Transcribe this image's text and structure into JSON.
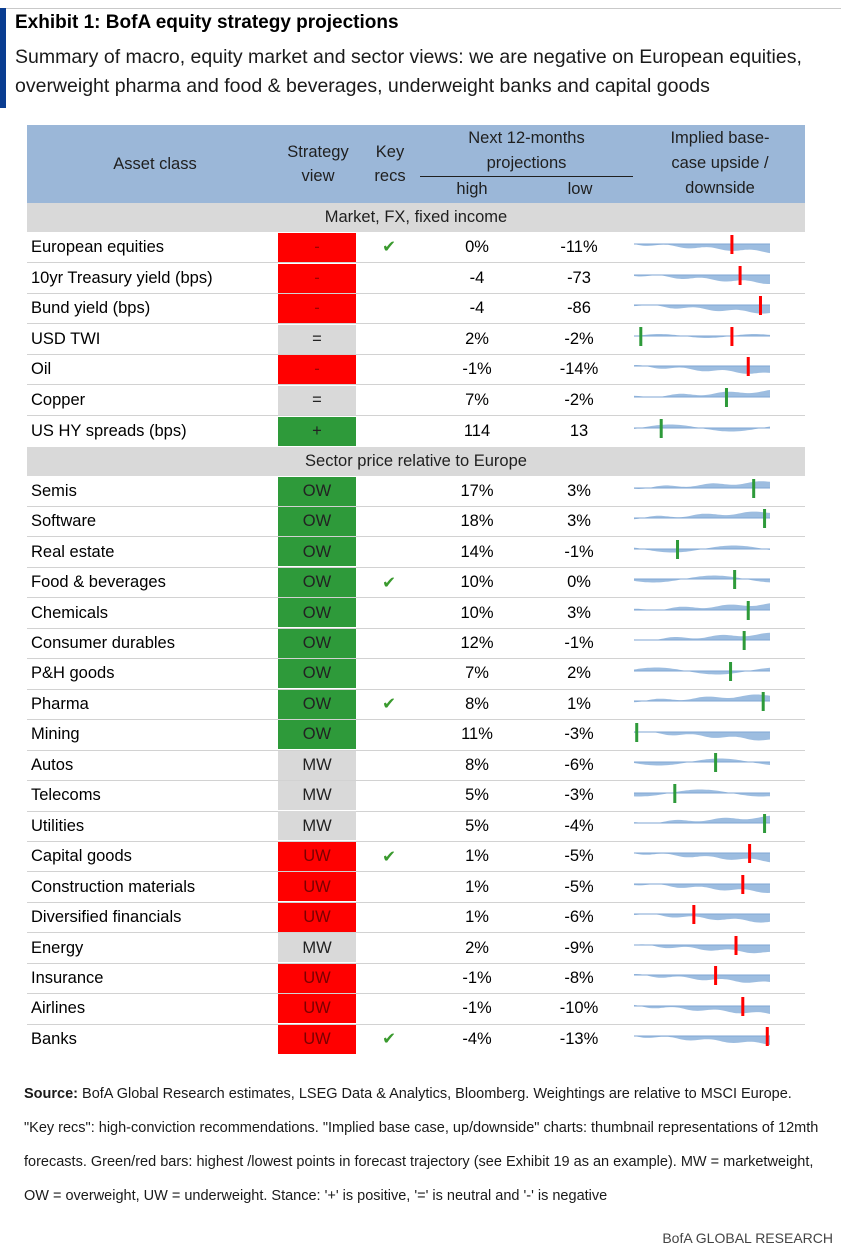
{
  "exhibit": {
    "title": "Exhibit 1: BofA equity strategy projections",
    "subtitle": "Summary of macro, equity market and sector views: we are negative on European equities, overweight pharma and food & beverages, underweight banks and capital goods"
  },
  "header": {
    "asset_class": "Asset class",
    "strategy_view_1": "Strategy",
    "strategy_view_2": "view",
    "key_recs_1": "Key",
    "key_recs_2": "recs",
    "next12_1": "Next 12-months",
    "next12_2": "projections",
    "high": "high",
    "low": "low",
    "implied_1": "Implied base-",
    "implied_2": "case upside /",
    "implied_3": "downside"
  },
  "sections": {
    "macro": "Market, FX, fixed income",
    "sector": "Sector price relative to Europe"
  },
  "colors": {
    "red": "#ff0000",
    "green": "#2e9a3a",
    "grey": "#d9d9d9",
    "header_blue": "#9bb7d8",
    "spark_blue": "#9dbde0"
  },
  "rows": [
    {
      "name": "European equities",
      "view": "-",
      "view_color": "red",
      "key": "✔",
      "high": "0%",
      "low": "-11%",
      "spark": {
        "shape": "down",
        "marker": "red",
        "pos": 0.72
      }
    },
    {
      "name": "10yr Treasury yield (bps)",
      "view": "-",
      "view_color": "red",
      "key": "",
      "high": "-4",
      "low": "-73",
      "spark": {
        "shape": "down",
        "marker": "red",
        "pos": 0.78
      }
    },
    {
      "name": "Bund yield (bps)",
      "view": "-",
      "view_color": "red",
      "key": "",
      "high": "-4",
      "low": "-86",
      "spark": {
        "shape": "down",
        "marker": "red",
        "pos": 0.93
      }
    },
    {
      "name": "USD TWI",
      "view": "=",
      "view_color": "grey",
      "key": "",
      "high": "2%",
      "low": "-2%",
      "spark": {
        "shape": "flat",
        "marker": "both",
        "pos": 0.72
      }
    },
    {
      "name": "Oil",
      "view": "-",
      "view_color": "red",
      "key": "",
      "high": "-1%",
      "low": "-14%",
      "spark": {
        "shape": "down",
        "marker": "red",
        "pos": 0.84
      }
    },
    {
      "name": "Copper",
      "view": "=",
      "view_color": "grey",
      "key": "",
      "high": "7%",
      "low": "-2%",
      "spark": {
        "shape": "up",
        "marker": "green",
        "pos": 0.68
      }
    },
    {
      "name": "US HY spreads (bps)",
      "view": "+",
      "view_color": "green",
      "key": "",
      "high": "114",
      "low": "13",
      "spark": {
        "shape": "wave",
        "marker": "green",
        "pos": 0.2
      }
    },
    {
      "name": "Semis",
      "view": "OW",
      "view_color": "green",
      "key": "",
      "high": "17%",
      "low": "3%",
      "spark": {
        "shape": "up",
        "marker": "green",
        "pos": 0.88
      }
    },
    {
      "name": "Software",
      "view": "OW",
      "view_color": "green",
      "key": "",
      "high": "18%",
      "low": "3%",
      "spark": {
        "shape": "up",
        "marker": "green",
        "pos": 0.96
      }
    },
    {
      "name": "Real estate",
      "view": "OW",
      "view_color": "green",
      "key": "",
      "high": "14%",
      "low": "-1%",
      "spark": {
        "shape": "wave",
        "marker": "green",
        "pos": 0.32
      }
    },
    {
      "name": "Food & beverages",
      "view": "OW",
      "view_color": "green",
      "key": "✔",
      "high": "10%",
      "low": "0%",
      "spark": {
        "shape": "wave",
        "marker": "green",
        "pos": 0.74
      }
    },
    {
      "name": "Chemicals",
      "view": "OW",
      "view_color": "green",
      "key": "",
      "high": "10%",
      "low": "3%",
      "spark": {
        "shape": "up",
        "marker": "green",
        "pos": 0.84
      }
    },
    {
      "name": "Consumer durables",
      "view": "OW",
      "view_color": "green",
      "key": "",
      "high": "12%",
      "low": "-1%",
      "spark": {
        "shape": "up",
        "marker": "green",
        "pos": 0.81
      }
    },
    {
      "name": "P&H goods",
      "view": "OW",
      "view_color": "green",
      "key": "",
      "high": "7%",
      "low": "2%",
      "spark": {
        "shape": "wave",
        "marker": "green",
        "pos": 0.71
      }
    },
    {
      "name": "Pharma",
      "view": "OW",
      "view_color": "green",
      "key": "✔",
      "high": "8%",
      "low": "1%",
      "spark": {
        "shape": "up",
        "marker": "green",
        "pos": 0.95
      }
    },
    {
      "name": "Mining",
      "view": "OW",
      "view_color": "green",
      "key": "",
      "high": "11%",
      "low": "-3%",
      "spark": {
        "shape": "down",
        "marker": "green",
        "pos": 0.02
      }
    },
    {
      "name": "Autos",
      "view": "MW",
      "view_color": "grey",
      "key": "",
      "high": "8%",
      "low": "-6%",
      "spark": {
        "shape": "wave",
        "marker": "green",
        "pos": 0.6
      }
    },
    {
      "name": "Telecoms",
      "view": "MW",
      "view_color": "grey",
      "key": "",
      "high": "5%",
      "low": "-3%",
      "spark": {
        "shape": "wave",
        "marker": "green",
        "pos": 0.3
      }
    },
    {
      "name": "Utilities",
      "view": "MW",
      "view_color": "grey",
      "key": "",
      "high": "5%",
      "low": "-4%",
      "spark": {
        "shape": "up",
        "marker": "green",
        "pos": 0.96
      }
    },
    {
      "name": "Capital goods",
      "view": "UW",
      "view_color": "red",
      "key": "✔",
      "high": "1%",
      "low": "-5%",
      "spark": {
        "shape": "down",
        "marker": "red",
        "pos": 0.85
      }
    },
    {
      "name": "Construction materials",
      "view": "UW",
      "view_color": "red",
      "key": "",
      "high": "1%",
      "low": "-5%",
      "spark": {
        "shape": "down",
        "marker": "red",
        "pos": 0.8
      }
    },
    {
      "name": "Diversified financials",
      "view": "UW",
      "view_color": "red",
      "key": "",
      "high": "1%",
      "low": "-6%",
      "spark": {
        "shape": "down",
        "marker": "red",
        "pos": 0.44
      }
    },
    {
      "name": "Energy",
      "view": "MW",
      "view_color": "grey",
      "key": "",
      "high": "2%",
      "low": "-9%",
      "spark": {
        "shape": "down",
        "marker": "red",
        "pos": 0.75
      }
    },
    {
      "name": "Insurance",
      "view": "UW",
      "view_color": "red",
      "key": "",
      "high": "-1%",
      "low": "-8%",
      "spark": {
        "shape": "down",
        "marker": "red",
        "pos": 0.6
      }
    },
    {
      "name": "Airlines",
      "view": "UW",
      "view_color": "red",
      "key": "",
      "high": "-1%",
      "low": "-10%",
      "spark": {
        "shape": "down",
        "marker": "red",
        "pos": 0.8
      }
    },
    {
      "name": "Banks",
      "view": "UW",
      "view_color": "red",
      "key": "✔",
      "high": "-4%",
      "low": "-13%",
      "spark": {
        "shape": "down",
        "marker": "red",
        "pos": 0.98
      }
    }
  ],
  "source": {
    "label": "Source:",
    "text": " BofA Global Research estimates, LSEG Data & Analytics, Bloomberg. Weightings are relative to MSCI Europe. \"Key recs\": high-conviction recommendations. \"Implied base case, up/downside\" charts: thumbnail representations of 12mth forecasts. Green/red bars: highest /lowest points in forecast trajectory (see Exhibit 19 as an example). MW = marketweight, OW = overweight, UW = underweight. Stance: '+' is positive, '=' is neutral and '-' is negative"
  },
  "footer": "BofA GLOBAL RESEARCH"
}
